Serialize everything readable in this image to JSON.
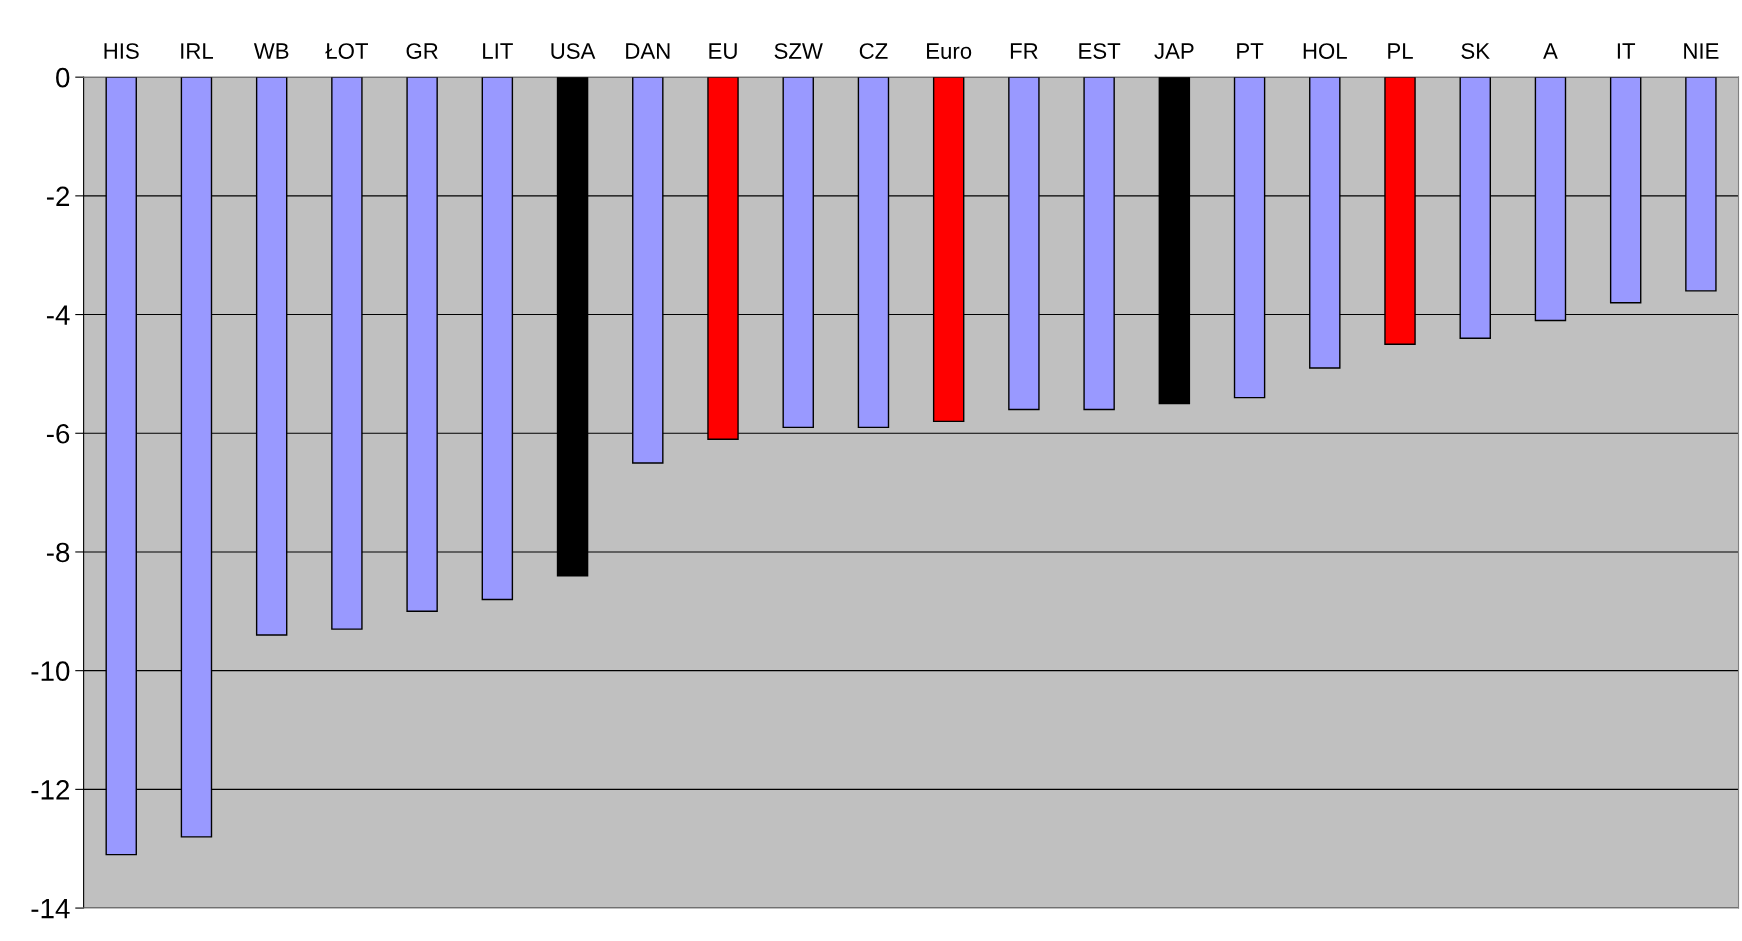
{
  "chart_data": {
    "type": "bar",
    "categories": [
      "HIS",
      "IRL",
      "WB",
      "ŁOT",
      "GR",
      "LIT",
      "USA",
      "DAN",
      "EU",
      "SZW",
      "CZ",
      "Euro",
      "FR",
      "EST",
      "JAP",
      "PT",
      "HOL",
      "PL",
      "SK",
      "A",
      "IT",
      "NIE"
    ],
    "values": [
      -13.1,
      -12.8,
      -9.4,
      -9.3,
      -9.0,
      -8.8,
      -8.4,
      -6.5,
      -6.1,
      -5.9,
      -5.9,
      -5.8,
      -5.6,
      -5.6,
      -5.5,
      -5.4,
      -4.9,
      -4.5,
      -4.4,
      -4.1,
      -3.8,
      -3.6
    ],
    "colors": [
      "#9999ff",
      "#9999ff",
      "#9999ff",
      "#9999ff",
      "#9999ff",
      "#9999ff",
      "#000000",
      "#9999ff",
      "#ff0000",
      "#9999ff",
      "#9999ff",
      "#ff0000",
      "#9999ff",
      "#9999ff",
      "#000000",
      "#9999ff",
      "#9999ff",
      "#ff0000",
      "#9999ff",
      "#9999ff",
      "#9999ff",
      "#9999ff"
    ],
    "ylim": [
      -14,
      0
    ],
    "yticks": [
      -14,
      -12,
      -10,
      -8,
      -6,
      -4,
      -2,
      0
    ],
    "grid": "y"
  }
}
